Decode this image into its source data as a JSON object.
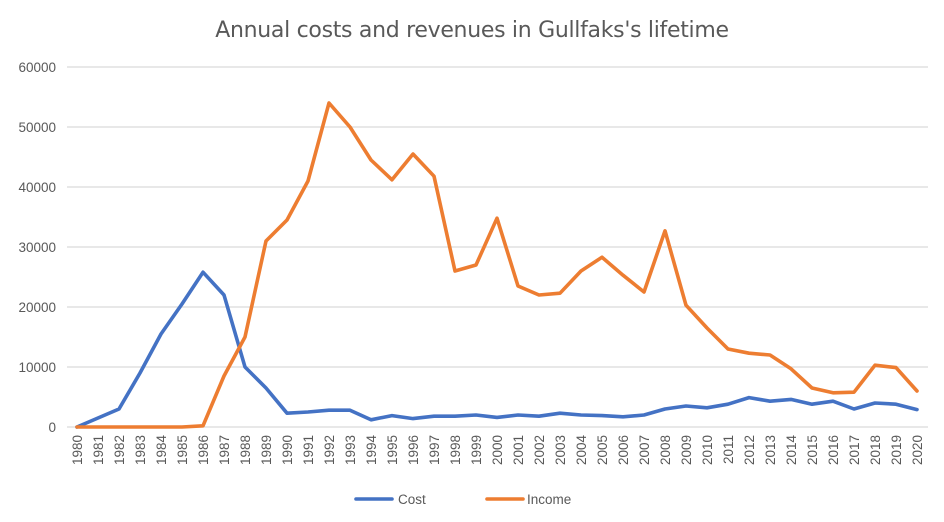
{
  "chart_data": {
    "type": "line",
    "title": "Annual costs and revenues in Gullfaks's lifetime",
    "xlabel": "",
    "ylabel": "",
    "ylim": [
      0,
      60000
    ],
    "yticks": [
      0,
      10000,
      20000,
      30000,
      40000,
      50000,
      60000
    ],
    "grid": true,
    "legend_position": "bottom",
    "x": [
      1980,
      1981,
      1982,
      1983,
      1984,
      1985,
      1986,
      1987,
      1988,
      1989,
      1990,
      1991,
      1992,
      1993,
      1994,
      1995,
      1996,
      1997,
      1998,
      1999,
      2000,
      2001,
      2002,
      2003,
      2004,
      2005,
      2006,
      2007,
      2008,
      2009,
      2010,
      2011,
      2012,
      2013,
      2014,
      2015,
      2016,
      2017,
      2018,
      2019,
      2020
    ],
    "series": [
      {
        "name": "Cost",
        "color": "#4472C4",
        "values": [
          0,
          1500,
          3000,
          9000,
          15500,
          20500,
          25800,
          22000,
          10000,
          6500,
          2300,
          2500,
          2800,
          2800,
          1200,
          1900,
          1400,
          1800,
          1800,
          2000,
          1600,
          2000,
          1800,
          2300,
          2000,
          1900,
          1700,
          2000,
          3000,
          3500,
          3200,
          3800,
          4900,
          4300,
          4600,
          3800,
          4300,
          3000,
          4000,
          3800,
          2900
        ]
      },
      {
        "name": "Income",
        "color": "#ED7D31",
        "values": [
          0,
          0,
          0,
          0,
          0,
          0,
          200,
          8500,
          15000,
          31000,
          34500,
          41000,
          54000,
          50000,
          44500,
          41200,
          45500,
          41800,
          26000,
          27000,
          34800,
          23500,
          22000,
          22300,
          26000,
          28300,
          25300,
          22500,
          32700,
          20300,
          16500,
          13000,
          12300,
          12000,
          9700,
          6500,
          5700,
          5800,
          10300,
          9900,
          6000
        ]
      }
    ]
  }
}
